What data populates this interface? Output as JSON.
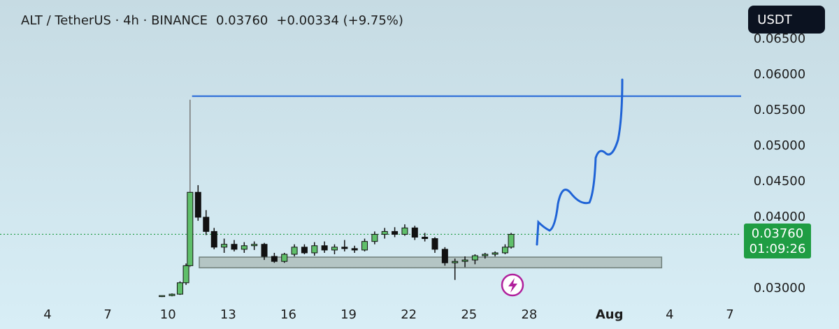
{
  "chart_data": {
    "type": "candlestick",
    "title": "ALT / TetherUS · 4h · BINANCE",
    "last_price": {
      "value": 0.0376,
      "label": "0.03760"
    },
    "change_label": "+0.00334 (+9.75%)",
    "countdown": "01:09:26",
    "currency_button": "USDT",
    "up_color": "#5fbf6a",
    "down_color": "#111111",
    "x": [
      9.7,
      10.2,
      10.6,
      10.9,
      11.1,
      11.5,
      11.9,
      12.3,
      12.8,
      13.3,
      13.8,
      14.3,
      14.8,
      15.3,
      15.8,
      16.3,
      16.8,
      17.3,
      17.8,
      18.3,
      18.8,
      19.3,
      19.8,
      20.3,
      20.8,
      21.3,
      21.8,
      22.3,
      22.8,
      23.3,
      23.8,
      24.3,
      24.8,
      25.3,
      25.8,
      26.3,
      26.8,
      27.1
    ],
    "open": [
      0.0289,
      0.029,
      0.0292,
      0.0308,
      0.0332,
      0.0435,
      0.04,
      0.038,
      0.0358,
      0.0362,
      0.0355,
      0.036,
      0.0362,
      0.0345,
      0.0338,
      0.0348,
      0.0358,
      0.035,
      0.036,
      0.0354,
      0.0358,
      0.0356,
      0.0354,
      0.0366,
      0.0376,
      0.038,
      0.0376,
      0.0385,
      0.0372,
      0.037,
      0.0355,
      0.0336,
      0.0338,
      0.034,
      0.0346,
      0.0348,
      0.035,
      0.0358
    ],
    "high": [
      0.029,
      0.0293,
      0.031,
      0.0335,
      0.0565,
      0.0445,
      0.041,
      0.0385,
      0.037,
      0.0368,
      0.0365,
      0.0366,
      0.0364,
      0.035,
      0.035,
      0.0362,
      0.0362,
      0.0365,
      0.0366,
      0.0362,
      0.0368,
      0.036,
      0.037,
      0.038,
      0.0385,
      0.0386,
      0.039,
      0.0388,
      0.0378,
      0.0372,
      0.0358,
      0.0342,
      0.0345,
      0.0348,
      0.035,
      0.0352,
      0.0362,
      0.0378
    ],
    "low": [
      0.0288,
      0.0289,
      0.0291,
      0.0305,
      0.033,
      0.0395,
      0.0375,
      0.0355,
      0.035,
      0.0352,
      0.035,
      0.0354,
      0.034,
      0.0336,
      0.0336,
      0.0345,
      0.0348,
      0.0346,
      0.035,
      0.0348,
      0.0352,
      0.035,
      0.0352,
      0.0362,
      0.037,
      0.0372,
      0.0374,
      0.0368,
      0.0366,
      0.035,
      0.0332,
      0.0312,
      0.033,
      0.0334,
      0.0342,
      0.0345,
      0.0348,
      0.0356
    ],
    "close": [
      0.029,
      0.0292,
      0.0308,
      0.0332,
      0.0435,
      0.04,
      0.038,
      0.0358,
      0.0362,
      0.0355,
      0.036,
      0.0362,
      0.0345,
      0.0338,
      0.0348,
      0.0358,
      0.035,
      0.036,
      0.0354,
      0.0358,
      0.0356,
      0.0354,
      0.0366,
      0.0376,
      0.038,
      0.0376,
      0.0385,
      0.0372,
      0.037,
      0.0355,
      0.0336,
      0.0338,
      0.034,
      0.0346,
      0.0348,
      0.035,
      0.0358,
      0.0376
    ],
    "resistance": {
      "value": 0.057,
      "start": 11.2,
      "color": "#1f63d6"
    },
    "support_zone": {
      "low": 0.0329,
      "high": 0.0344,
      "start": 11.56,
      "end": 34.6
    },
    "xlim": [
      1.63,
      38.56
    ],
    "xticks": [
      4,
      7,
      10,
      13,
      16,
      19,
      22,
      25,
      28,
      {
        "value": 32,
        "label": "Aug"
      },
      {
        "value": 35,
        "label": "4"
      },
      {
        "value": 38,
        "label": "7"
      }
    ],
    "ylim": [
      0.02735,
      0.07049
    ],
    "yticks": [
      {
        "value": 0.03,
        "label": "0.03000"
      },
      {
        "value": 0.04,
        "label": "0.04000"
      },
      {
        "value": 0.045,
        "label": "0.04500"
      },
      {
        "value": 0.05,
        "label": "0.05000"
      },
      {
        "value": 0.055,
        "label": "0.05500"
      },
      {
        "value": 0.06,
        "label": "0.06000"
      },
      {
        "value": 0.065,
        "label": "0.06500"
      }
    ]
  }
}
